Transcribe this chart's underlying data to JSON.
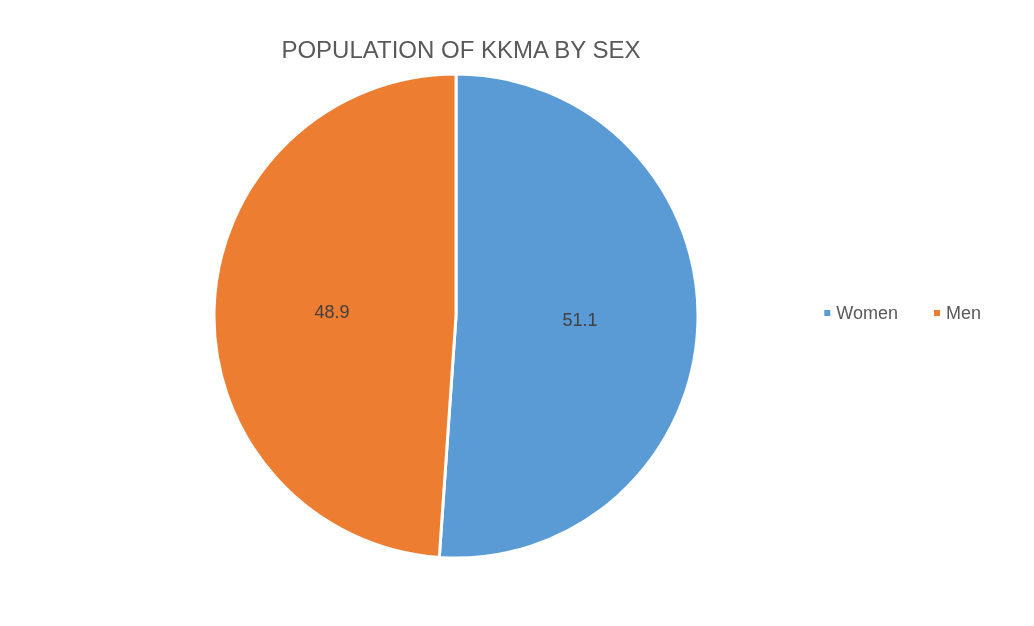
{
  "chart_data": {
    "type": "pie",
    "title": "POPULATION OF KKMA BY SEX",
    "categories": [
      "Women",
      "Men"
    ],
    "values": [
      51.1,
      48.9
    ],
    "colors": [
      "#5b9bd5",
      "#ed7d31"
    ],
    "data_labels": true,
    "legend": "right"
  }
}
